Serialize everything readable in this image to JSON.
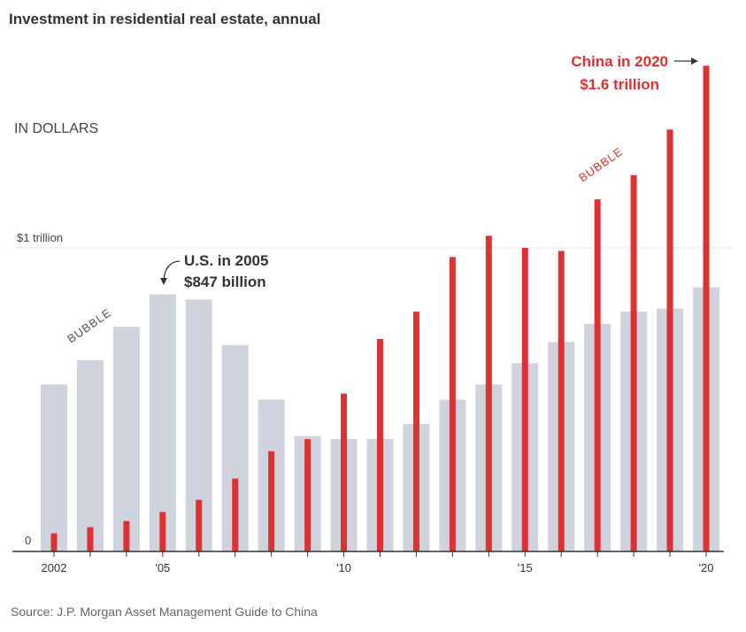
{
  "title": "Investment in residential real estate, annual",
  "unit_label": "IN DOLLARS",
  "source": "Source: J.P. Morgan Asset Management Guide to China",
  "chart_data": {
    "type": "bar",
    "title": "Investment in residential real estate, annual",
    "subtitle": "IN DOLLARS",
    "categories": [
      "2002",
      "2003",
      "2004",
      "2005",
      "2006",
      "2007",
      "2008",
      "2009",
      "2010",
      "2011",
      "2012",
      "2013",
      "2014",
      "2015",
      "2016",
      "2017",
      "2018",
      "2019",
      "2020"
    ],
    "x_tick_labels": [
      {
        "category": "2002",
        "label": "2002"
      },
      {
        "category": "2005",
        "label": "'05"
      },
      {
        "category": "2010",
        "label": "'10"
      },
      {
        "category": "2015",
        "label": "'15"
      },
      {
        "category": "2020",
        "label": "'20"
      }
    ],
    "y_tick_labels": [
      {
        "value": 0,
        "label": "0"
      },
      {
        "value": 1.0,
        "label": "$1 trillion"
      }
    ],
    "ylim": [
      0,
      1.7
    ],
    "series": [
      {
        "key": "us",
        "color": "#cfd3dd",
        "values": [
          0.55,
          0.63,
          0.74,
          0.847,
          0.83,
          0.68,
          0.5,
          0.38,
          0.37,
          0.37,
          0.42,
          0.5,
          0.55,
          0.62,
          0.69,
          0.75,
          0.79,
          0.8,
          0.87
        ]
      },
      {
        "key": "china",
        "color": "#dc3232",
        "values": [
          0.06,
          0.08,
          0.1,
          0.13,
          0.17,
          0.24,
          0.33,
          0.37,
          0.52,
          0.7,
          0.79,
          0.97,
          1.04,
          1.0,
          0.99,
          1.16,
          1.24,
          1.39,
          1.6
        ]
      }
    ],
    "annotations": {
      "us_peak_line1": "U.S. in 2005",
      "us_peak_line2": "$847 billion",
      "china_peak_line1": "China in 2020",
      "china_peak_line2": "$1.6 trillion",
      "bubble_us": "BUBBLE",
      "bubble_china": "BUBBLE"
    }
  }
}
